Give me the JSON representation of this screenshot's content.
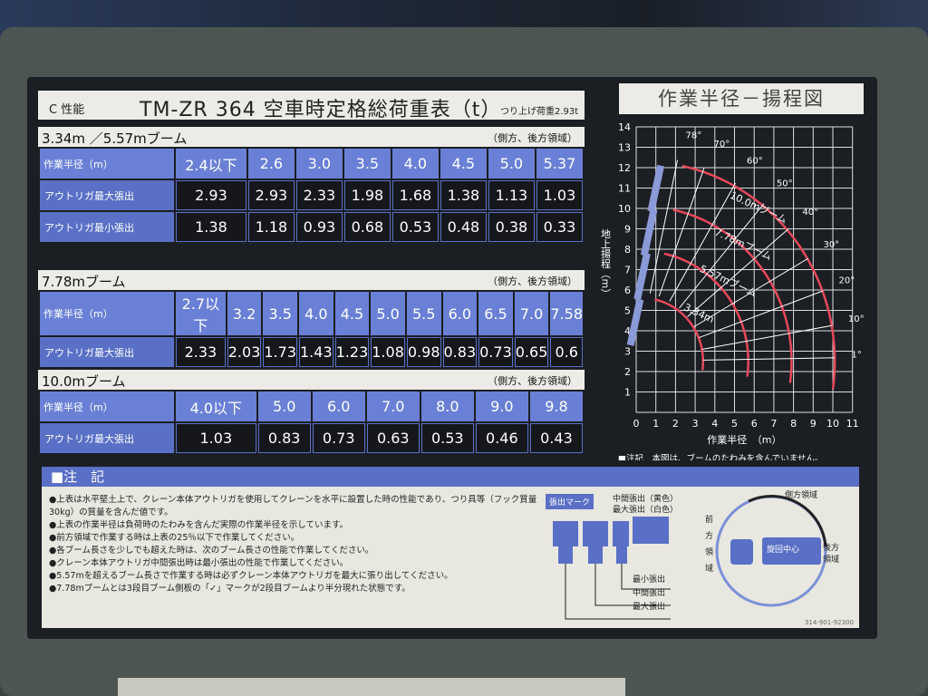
{
  "header": {
    "section": "C 性能",
    "title": "TM-ZR 364 空車時定格総荷重表（t）",
    "subtitle": "つり上げ荷重2.93t"
  },
  "tables": [
    {
      "boom": "3.34m ／5.57mブーム",
      "area": "（側方、後方領域）",
      "radius_label": "作業半径（m）",
      "radii": [
        "2.4以下",
        "2.6",
        "3.0",
        "3.5",
        "4.0",
        "4.5",
        "5.0",
        "5.37"
      ],
      "rows": [
        {
          "label": "アウトリガ最大張出",
          "values": [
            "2.93",
            "2.93",
            "2.33",
            "1.98",
            "1.68",
            "1.38",
            "1.13",
            "1.03"
          ]
        },
        {
          "label": "アウトリガ最小張出",
          "values": [
            "1.38",
            "1.18",
            "0.93",
            "0.68",
            "0.53",
            "0.48",
            "0.38",
            "0.33"
          ]
        }
      ]
    },
    {
      "boom": "7.78mブーム",
      "area": "（側方、後方領域）",
      "radius_label": "作業半径（m）",
      "radii": [
        "2.7以下",
        "3.2",
        "3.5",
        "4.0",
        "4.5",
        "5.0",
        "5.5",
        "6.0",
        "6.5",
        "7.0",
        "7.58"
      ],
      "rows": [
        {
          "label": "アウトリガ最大張出",
          "values": [
            "2.33",
            "2.03",
            "1.73",
            "1.43",
            "1.23",
            "1.08",
            "0.98",
            "0.83",
            "0.73",
            "0.65",
            "0.6"
          ]
        }
      ]
    },
    {
      "boom": "10.0mブーム",
      "area": "（側方、後方領域）",
      "radius_label": "作業半径（m）",
      "radii": [
        "4.0以下",
        "5.0",
        "6.0",
        "7.0",
        "8.0",
        "9.0",
        "9.8"
      ],
      "rows": [
        {
          "label": "アウトリガ最大張出",
          "values": [
            "1.03",
            "0.83",
            "0.73",
            "0.63",
            "0.53",
            "0.46",
            "0.43"
          ]
        }
      ]
    }
  ],
  "chart": {
    "title": "作業半径－揚程図",
    "ylabel": "地上揚程（m）",
    "xlabel": "作業半径　（m）",
    "x_ticks": [
      "0",
      "1",
      "2",
      "3",
      "4",
      "5",
      "6",
      "7",
      "8",
      "9",
      "10",
      "11"
    ],
    "y_ticks": [
      "0",
      "1",
      "2",
      "3",
      "4",
      "5",
      "6",
      "7",
      "8",
      "9",
      "10",
      "11",
      "12",
      "13",
      "14"
    ],
    "angles": [
      "78°",
      "70°",
      "60°",
      "50°",
      "40°",
      "30°",
      "20°",
      "10°",
      "1°"
    ],
    "booms": [
      "3.34m",
      "5.57mブーム",
      "7.78mブーム",
      "10.0mブーム"
    ],
    "note": "■注記　本図は、ブームのたわみを含んでいません。",
    "line_color": "#e8485a",
    "boom_color": "#8a9ad8"
  },
  "notes": {
    "heading": "■注　記",
    "items": [
      "●上表は水平堅土上で、クレーン本体アウトリガを使用してクレーンを水平に設置した時の性能であり、つり具等（フック質量30kg）の質量を含んだ値です。",
      "●上表の作業半径は負荷時のたわみを含んだ実際の作業半径を示しています。",
      "●前方領域で作業する時は上表の25％以下で作業してください。",
      "●各ブーム長さを少しでも超えた時は、次のブーム長さの性能で作業してください。",
      "●クレーン本体アウトリガ中間張出時は最小張出の性能で作業してください。",
      "●5.57mを超えるブーム長さで作業する時は必ずクレーン本体アウトリガを最大に張り出してください。",
      "●7.78mブームとは3段目ブーム側板の「✓」マークが2段目ブームより半分現れた状態です。"
    ],
    "mark_label": "張出マーク",
    "mid_color": "中間張出（黄色）",
    "max_color": "最大張出（白色）",
    "min_ext": "最小張出",
    "mid_ext": "中間張出",
    "max_ext": "最大張出",
    "front": "前方領域",
    "side": "側方領域",
    "rear": "後方領域",
    "center": "旋回中心",
    "code": "314-901-92300"
  }
}
